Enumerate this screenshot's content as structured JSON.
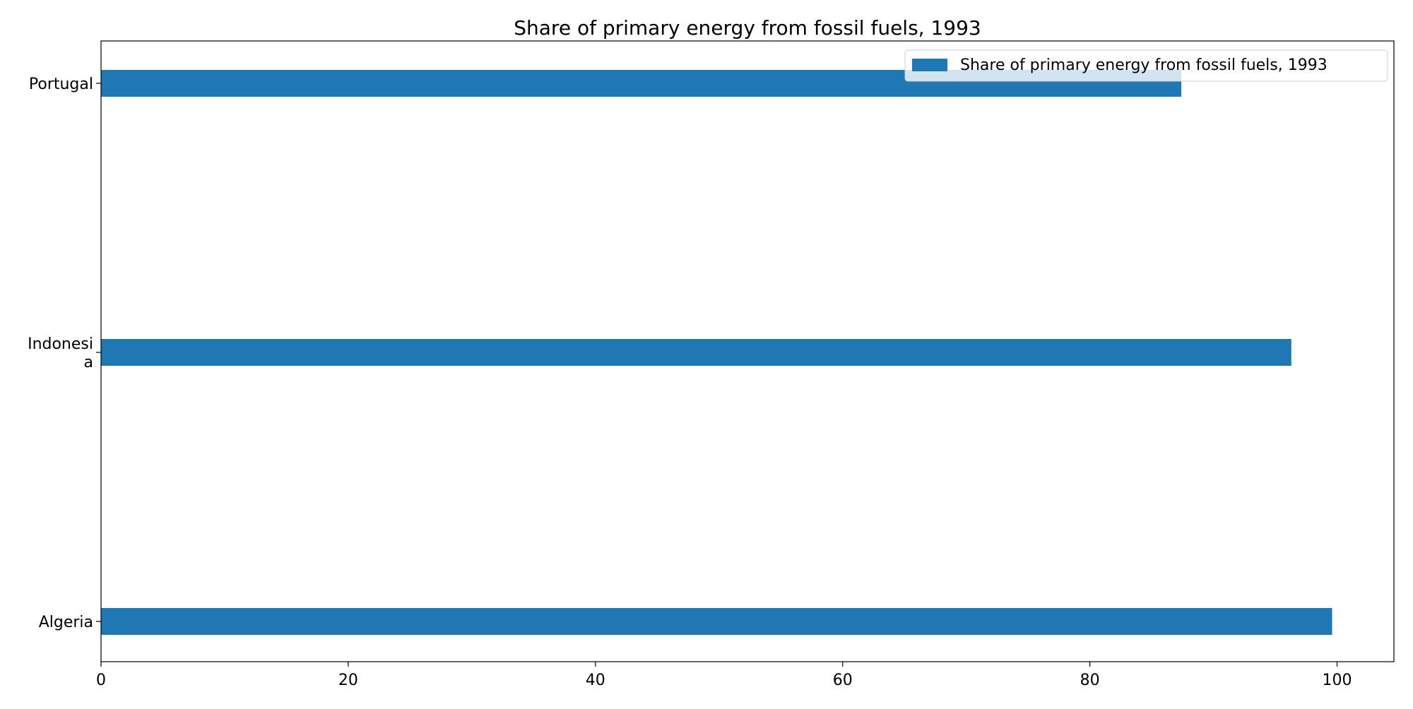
{
  "chart_data": {
    "type": "bar",
    "orientation": "horizontal",
    "title": "Share of primary energy from fossil fuels, 1993",
    "xlabel": "",
    "ylabel": "",
    "categories": [
      "Portugal",
      "Indonesia",
      "Algeria"
    ],
    "category_labels": [
      [
        "Portugal"
      ],
      [
        "Indonesi",
        "a"
      ],
      [
        "Algeria"
      ]
    ],
    "series": [
      {
        "name": "Share of primary energy from fossil fuels, 1993",
        "values": [
          87.4,
          96.3,
          99.6
        ],
        "color": "#1f77b4"
      }
    ],
    "xlim": [
      0,
      104.6
    ],
    "xticks": [
      0,
      20,
      40,
      60,
      80,
      100
    ],
    "grid": false,
    "legend": "top-right"
  }
}
